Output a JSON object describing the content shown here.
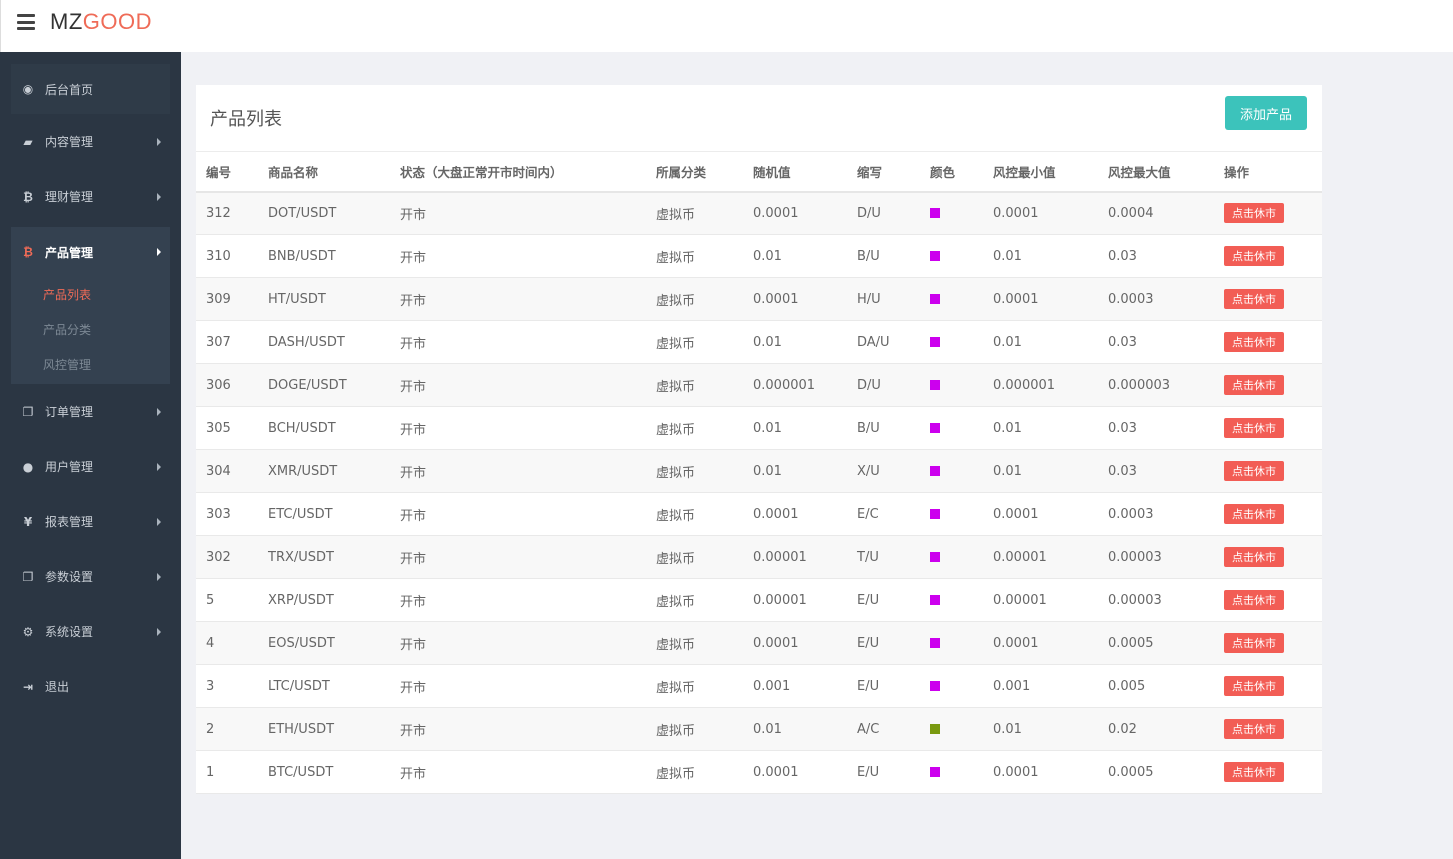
{
  "logo": {
    "part1": "MZ",
    "part2": "GOOD"
  },
  "sidebar": {
    "items": [
      {
        "label": "后台首页",
        "icon": "dashboard-icon"
      },
      {
        "label": "内容管理",
        "icon": "book-icon"
      },
      {
        "label": "理财管理",
        "icon": "bitcoin-icon"
      },
      {
        "label": "产品管理",
        "icon": "bitcoin-icon",
        "active": true,
        "children": [
          {
            "label": "产品列表",
            "active": true
          },
          {
            "label": "产品分类"
          },
          {
            "label": "风控管理"
          }
        ]
      },
      {
        "label": "订单管理",
        "icon": "copy-icon"
      },
      {
        "label": "用户管理",
        "icon": "user-icon"
      },
      {
        "label": "报表管理",
        "icon": "yen-icon"
      },
      {
        "label": "参数设置",
        "icon": "copy-icon"
      },
      {
        "label": "系统设置",
        "icon": "gears-icon"
      },
      {
        "label": "退出",
        "icon": "sign-out-icon"
      }
    ]
  },
  "panel": {
    "title": "产品列表",
    "add_button": "添加产品"
  },
  "table": {
    "headers": [
      "编号",
      "商品名称",
      "状态（大盘正常开市时间内）",
      "所属分类",
      "随机值",
      "缩写",
      "颜色",
      "风控最小值",
      "风控最大值",
      "操作"
    ],
    "rows": [
      {
        "id": "312",
        "name": "DOT/USDT",
        "status": "开市",
        "category": "虚拟币",
        "random": "0.0001",
        "abbr": "D/U",
        "color": "#cc00ee",
        "min": "0.0001",
        "max": "0.0004",
        "action": "点击休市"
      },
      {
        "id": "310",
        "name": "BNB/USDT",
        "status": "开市",
        "category": "虚拟币",
        "random": "0.01",
        "abbr": "B/U",
        "color": "#cc00ee",
        "min": "0.01",
        "max": "0.03",
        "action": "点击休市"
      },
      {
        "id": "309",
        "name": "HT/USDT",
        "status": "开市",
        "category": "虚拟币",
        "random": "0.0001",
        "abbr": "H/U",
        "color": "#cc00ee",
        "min": "0.0001",
        "max": "0.0003",
        "action": "点击休市"
      },
      {
        "id": "307",
        "name": "DASH/USDT",
        "status": "开市",
        "category": "虚拟币",
        "random": "0.01",
        "abbr": "DA/U",
        "color": "#cc00ee",
        "min": "0.01",
        "max": "0.03",
        "action": "点击休市"
      },
      {
        "id": "306",
        "name": "DOGE/USDT",
        "status": "开市",
        "category": "虚拟币",
        "random": "0.000001",
        "abbr": "D/U",
        "color": "#cc00ee",
        "min": "0.000001",
        "max": "0.000003",
        "action": "点击休市"
      },
      {
        "id": "305",
        "name": "BCH/USDT",
        "status": "开市",
        "category": "虚拟币",
        "random": "0.01",
        "abbr": "B/U",
        "color": "#cc00ee",
        "min": "0.01",
        "max": "0.03",
        "action": "点击休市"
      },
      {
        "id": "304",
        "name": "XMR/USDT",
        "status": "开市",
        "category": "虚拟币",
        "random": "0.01",
        "abbr": "X/U",
        "color": "#cc00ee",
        "min": "0.01",
        "max": "0.03",
        "action": "点击休市"
      },
      {
        "id": "303",
        "name": "ETC/USDT",
        "status": "开市",
        "category": "虚拟币",
        "random": "0.0001",
        "abbr": "E/C",
        "color": "#cc00ee",
        "min": "0.0001",
        "max": "0.0003",
        "action": "点击休市"
      },
      {
        "id": "302",
        "name": "TRX/USDT",
        "status": "开市",
        "category": "虚拟币",
        "random": "0.00001",
        "abbr": "T/U",
        "color": "#cc00ee",
        "min": "0.00001",
        "max": "0.00003",
        "action": "点击休市"
      },
      {
        "id": "5",
        "name": "XRP/USDT",
        "status": "开市",
        "category": "虚拟币",
        "random": "0.00001",
        "abbr": "E/U",
        "color": "#cc00ee",
        "min": "0.00001",
        "max": "0.00003",
        "action": "点击休市"
      },
      {
        "id": "4",
        "name": "EOS/USDT",
        "status": "开市",
        "category": "虚拟币",
        "random": "0.0001",
        "abbr": "E/U",
        "color": "#cc00ee",
        "min": "0.0001",
        "max": "0.0005",
        "action": "点击休市"
      },
      {
        "id": "3",
        "name": "LTC/USDT",
        "status": "开市",
        "category": "虚拟币",
        "random": "0.001",
        "abbr": "E/U",
        "color": "#cc00ee",
        "min": "0.001",
        "max": "0.005",
        "action": "点击休市"
      },
      {
        "id": "2",
        "name": "ETH/USDT",
        "status": "开市",
        "category": "虚拟币",
        "random": "0.01",
        "abbr": "A/C",
        "color": "#7a9a10",
        "min": "0.01",
        "max": "0.02",
        "action": "点击休市"
      },
      {
        "id": "1",
        "name": "BTC/USDT",
        "status": "开市",
        "category": "虚拟币",
        "random": "0.0001",
        "abbr": "E/U",
        "color": "#cc00ee",
        "min": "0.0001",
        "max": "0.0005",
        "action": "点击休市"
      }
    ]
  }
}
